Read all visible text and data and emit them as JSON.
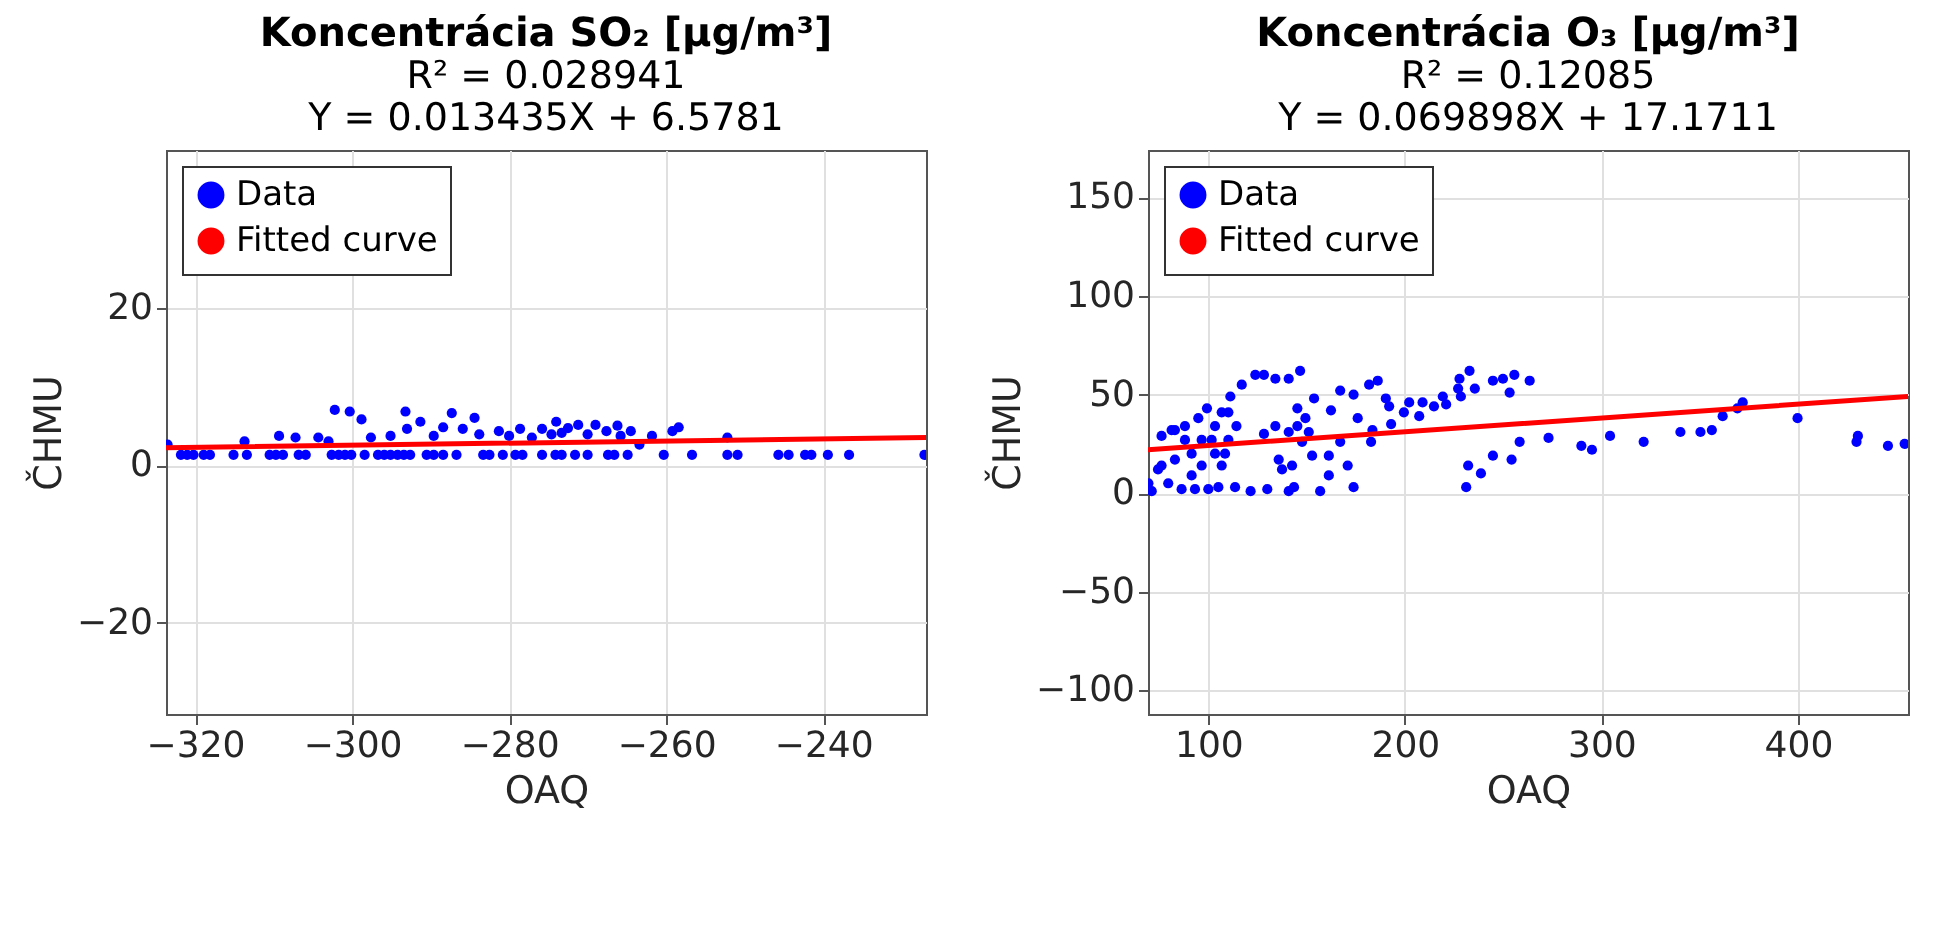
{
  "chart_data": [
    {
      "type": "scatter",
      "title": "Koncentrácia SO₂ [µg/m³]",
      "subtitle": "R² = 0.028941\nY = 0.013435X + 6.5781",
      "xlabel": "OAQ",
      "ylabel": "ČHMU",
      "xlim": [
        -323.7,
        -226.9
      ],
      "ylim": [
        -31.6,
        40
      ],
      "xticks": [
        -320,
        -300,
        -280,
        -260,
        -240
      ],
      "yticks": [
        -20,
        0,
        20
      ],
      "grid": true,
      "legend": "top left",
      "series": [
        {
          "name": "Data",
          "color": "#0000ff",
          "marker": "circle",
          "x": [
            -323.5,
            -321.8,
            -321.0,
            -320.2,
            -318.9,
            -318.1,
            -315.1,
            -313.4,
            -310.5,
            -309.7,
            -308.8,
            -306.8,
            -305.9,
            -302.6,
            -301.7,
            -300.9,
            -300.1,
            -298.4,
            -296.7,
            -295.9,
            -295.1,
            -294.2,
            -293.4,
            -292.6,
            -290.5,
            -289.6,
            -288.4,
            -286.7,
            -283.3,
            -282.5,
            -280.8,
            -279.2,
            -278.3,
            -275.8,
            -274.1,
            -273.3,
            -271.6,
            -270.0,
            -267.4,
            -266.6,
            -264.9,
            -260.3,
            -256.7,
            -252.2,
            -250.9,
            -245.7,
            -244.4,
            -242.3,
            -241.5,
            -239.4,
            -236.7,
            -227.1,
            -313.7,
            -309.3,
            -307.2,
            -304.3,
            -303.0,
            -302.2,
            -300.3,
            -298.8,
            -297.6,
            -295.1,
            -293.2,
            -293.0,
            -291.3,
            -289.6,
            -288.4,
            -287.3,
            -285.9,
            -284.4,
            -283.8,
            -281.3,
            -280.0,
            -278.6,
            -277.1,
            -275.8,
            -274.0,
            -273.3,
            -271.2,
            -270.0,
            -269.0,
            -267.6,
            -266.2,
            -264.5,
            -263.4,
            -261.8,
            -259.2,
            -258.4,
            -252.2,
            -274.6,
            -272.5,
            -265.8
          ],
          "values": [
            2.6,
            1.3,
            1.3,
            1.3,
            1.3,
            1.3,
            1.3,
            1.3,
            1.3,
            1.3,
            1.3,
            1.3,
            1.3,
            1.3,
            1.3,
            1.3,
            1.3,
            1.3,
            1.3,
            1.3,
            1.3,
            1.3,
            1.3,
            1.3,
            1.3,
            1.3,
            1.3,
            1.3,
            1.3,
            1.3,
            1.3,
            1.3,
            1.3,
            1.3,
            1.3,
            1.3,
            1.3,
            1.3,
            1.3,
            1.3,
            1.3,
            1.3,
            1.3,
            1.3,
            1.3,
            1.3,
            1.3,
            1.3,
            1.3,
            1.3,
            1.3,
            1.3,
            3.0,
            3.7,
            3.5,
            3.5,
            3.0,
            7.0,
            6.8,
            5.8,
            3.5,
            3.7,
            6.8,
            4.6,
            5.5,
            3.7,
            4.8,
            6.6,
            4.6,
            6.0,
            3.9,
            4.3,
            3.7,
            4.6,
            3.5,
            4.6,
            5.5,
            4.1,
            5.1,
            3.9,
            5.1,
            4.3,
            5.0,
            4.3,
            2.6,
            3.7,
            4.3,
            4.8,
            3.5,
            3.9,
            4.7,
            3.7
          ]
        },
        {
          "name": "Fitted curve",
          "type": "line",
          "color": "#ff0000",
          "x": [
            -323.7,
            -226.9
          ],
          "values": [
            2.2,
            3.5
          ]
        }
      ]
    },
    {
      "type": "scatter",
      "title": "Koncentrácia O₃ [µg/m³]",
      "subtitle": "R² = 0.12085\nY = 0.069898X + 17.1711",
      "xlabel": "OAQ",
      "ylabel": "ČHMU",
      "xlim": [
        69.3,
        456
      ],
      "ylim": [
        -112,
        174
      ],
      "xticks": [
        100,
        200,
        300,
        400
      ],
      "yticks": [
        -100,
        -50,
        0,
        50,
        100,
        150
      ],
      "grid": true,
      "legend": "top left",
      "series": [
        {
          "name": "Data",
          "color": "#0000ff",
          "marker": "circle",
          "x": [
            69.5,
            71.2,
            76.2,
            81.3,
            74.4,
            79.6,
            83.0,
            86.4,
            88.1,
            91.5,
            93.2,
            94.9,
            96.6,
            99.3,
            100,
            101.7,
            103.4,
            105.1,
            106.8,
            108.5,
            110.2,
            111.2,
            113.6,
            114.3,
            117.0,
            121.5,
            123.9,
            128.3,
            128.3,
            130.0,
            134.1,
            135.8,
            140.9,
            140.9,
            143.6,
            145.3,
            146.7,
            145.3,
            147.7,
            149.4,
            151.1,
            152.8,
            153.8,
            156.9,
            161.3,
            161.3,
            162.4,
            167.1,
            167.1,
            170.9,
            173.9,
            173.9,
            176.0,
            181.8,
            182.8,
            183.5,
            186.2,
            190.3,
            192.0,
            193.0,
            199.5,
            202.2,
            207.3,
            209.0,
            214.8,
            219.3,
            221.0,
            227.1,
            227.8,
            228.5,
            231.2,
            232.2,
            232.9,
            235.6,
            238.7,
            244.8,
            244.8,
            249.9,
            253.3,
            254.3,
            255.7,
            258.4,
            263.5,
            273.1,
            289.8,
            295.2,
            304.4,
            321.5,
            340.2,
            350.4,
            356.2,
            361.7,
            369.2,
            371.9,
            399.8,
            429.8,
            430.5,
            445.8,
            454.3,
            88.1,
            91.5,
            96.6,
            103.4,
            106.8,
            110.2,
            76.2,
            83.0,
            134.1,
            137.5,
            140.9,
            142.6
          ],
          "values": [
            5,
            1,
            29,
            32,
            12,
            5,
            17,
            2,
            27,
            20,
            2,
            38,
            14,
            43,
            2,
            27,
            34,
            3,
            41,
            20,
            27,
            49,
            3,
            34,
            55,
            1,
            60,
            60,
            30,
            2,
            58,
            17,
            58,
            1,
            3,
            43,
            62,
            34,
            26,
            38,
            31,
            19,
            48,
            1,
            19,
            9,
            42,
            52,
            26,
            14,
            3,
            50,
            38,
            55,
            26,
            32,
            57,
            48,
            44,
            35,
            41,
            46,
            39,
            46,
            44,
            49,
            45,
            53,
            58,
            49,
            3,
            14,
            62,
            53,
            10,
            19,
            57,
            58,
            51,
            17,
            60,
            26,
            57,
            28,
            24,
            22,
            29,
            26,
            31,
            31,
            32,
            39,
            43,
            46,
            38,
            26,
            29,
            24,
            25,
            34,
            9,
            27,
            20,
            14,
            41,
            14,
            32,
            34,
            12,
            31,
            14
          ]
        },
        {
          "name": "Fitted curve",
          "type": "line",
          "color": "#ff0000",
          "x": [
            69.3,
            456
          ],
          "values": [
            22,
            49
          ]
        }
      ]
    }
  ]
}
